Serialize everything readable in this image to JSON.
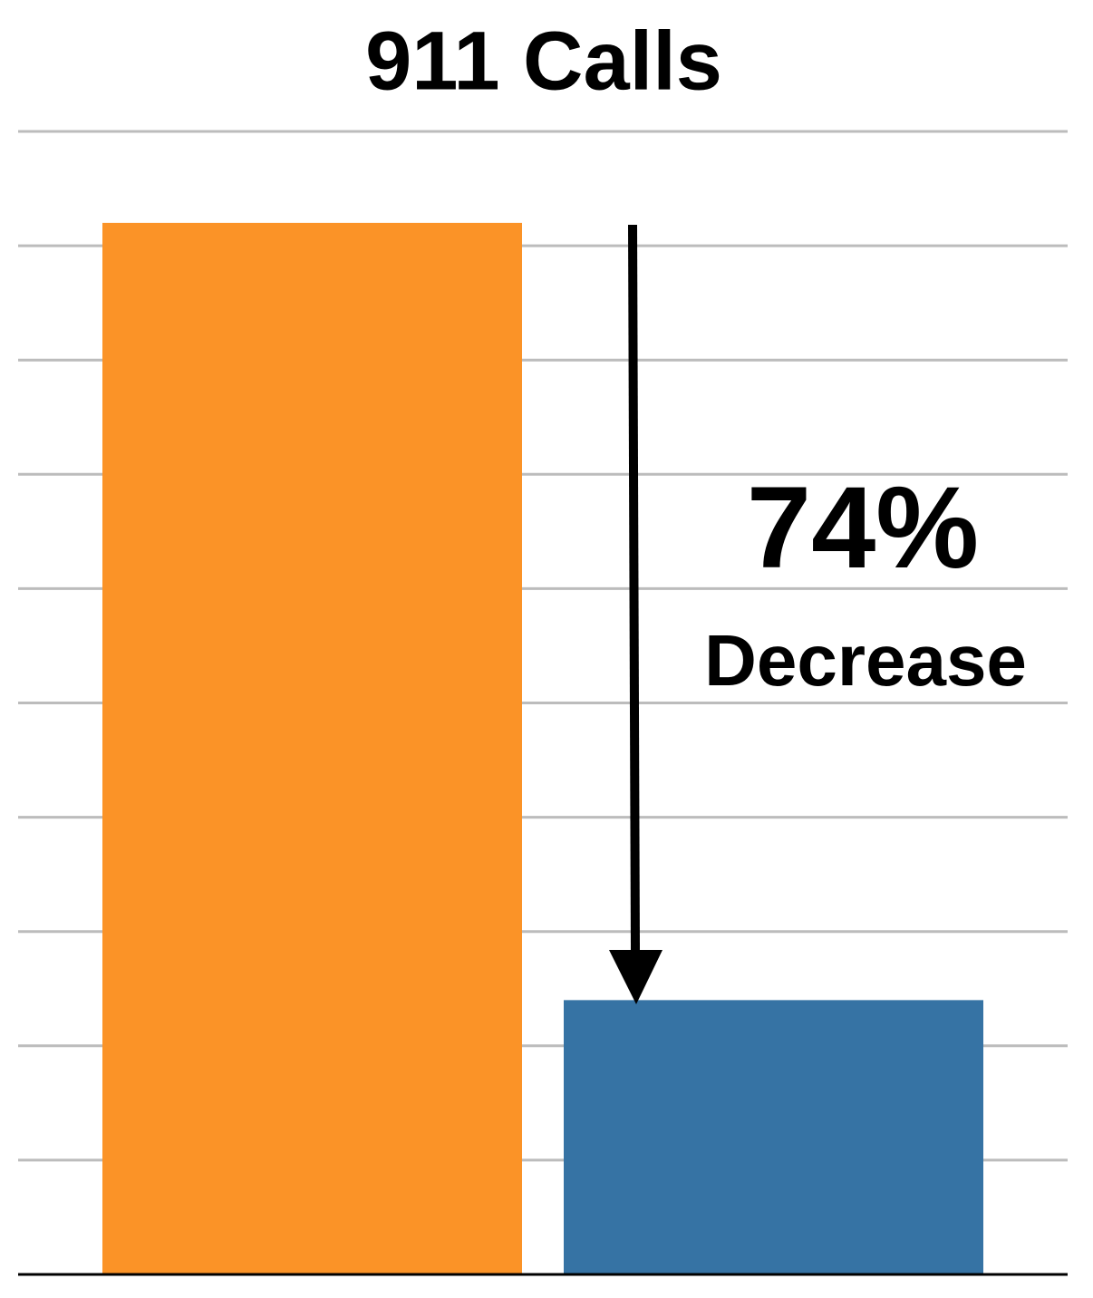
{
  "chart_data": {
    "type": "bar",
    "title": "911 Calls",
    "categories": [
      null,
      null
    ],
    "values": [
      9.2,
      2.4
    ],
    "colors": [
      "#fb9327",
      "#3673a4"
    ],
    "ylim": [
      0,
      10
    ],
    "yticks": [
      0,
      1,
      2,
      3,
      4,
      5,
      6,
      7,
      8,
      9,
      10
    ],
    "grid": true,
    "annotations": [
      "74%",
      "Decrease"
    ]
  }
}
